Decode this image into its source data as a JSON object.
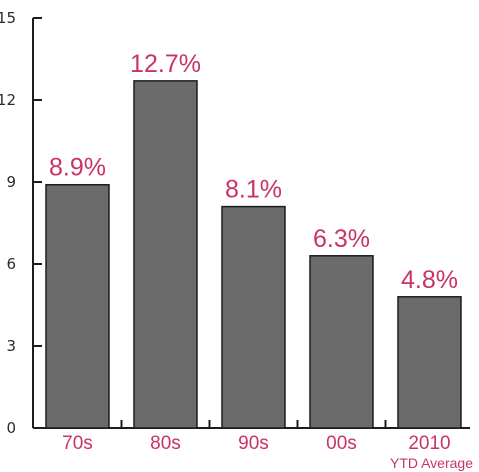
{
  "colors": {
    "bar_fill": "#6b6b6b",
    "bar_stroke": "#1c1c1c",
    "axis": "#1e1e1e",
    "accent": "#c8336a"
  },
  "chart_data": {
    "type": "bar",
    "categories": [
      "70s",
      "80s",
      "90s",
      "00s",
      "2010"
    ],
    "category_sublabels": [
      "",
      "",
      "",
      "",
      "YTD Average"
    ],
    "values": [
      8.9,
      12.7,
      8.1,
      6.3,
      4.8
    ],
    "value_labels": [
      "8.9%",
      "12.7%",
      "8.1%",
      "6.3%",
      "4.8%"
    ],
    "ylim": [
      0,
      15
    ],
    "yticks": [
      0,
      3,
      6,
      9,
      12,
      15
    ],
    "ytick_labels": [
      "0",
      "3",
      "6",
      "9",
      "12",
      "15"
    ],
    "grid": false,
    "title": "",
    "xlabel": "",
    "ylabel": ""
  }
}
